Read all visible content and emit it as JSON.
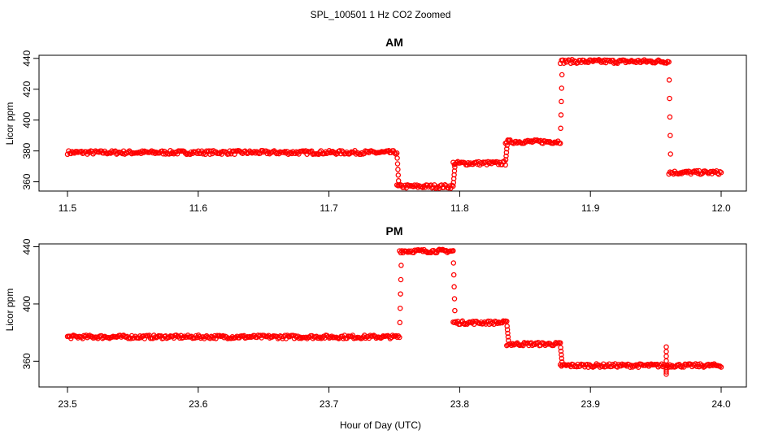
{
  "figure": {
    "title": "SPL_100501  1 Hz CO2 Zoomed",
    "xlabel": "Hour of Day (UTC)"
  },
  "chart_data": [
    {
      "type": "scatter",
      "title": "AM",
      "xlabel": "",
      "ylabel": "Licor ppm",
      "xlim": [
        11.5,
        12.0
      ],
      "ylim": [
        354,
        442
      ],
      "x_ticks": [
        11.5,
        11.6,
        11.7,
        11.8,
        11.9,
        12.0
      ],
      "x_tick_labels": [
        "11.5",
        "11.6",
        "11.7",
        "11.8",
        "11.9",
        "12.0"
      ],
      "y_ticks": [
        360,
        380,
        400,
        420,
        440
      ],
      "y_tick_labels": [
        "360",
        "380",
        "400",
        "420",
        "440"
      ],
      "marker_color": "#ff0000",
      "segments": [
        {
          "x_start": 11.5,
          "x_end": 11.752,
          "y": 379
        },
        {
          "x_start": 11.752,
          "x_end": 11.795,
          "y": 357
        },
        {
          "x_start": 11.795,
          "x_end": 11.835,
          "y": 372
        },
        {
          "x_start": 11.835,
          "x_end": 11.877,
          "y": 386
        },
        {
          "x_start": 11.877,
          "x_end": 11.96,
          "y": 438
        },
        {
          "x_start": 11.96,
          "x_end": 12.0,
          "y": 366
        }
      ],
      "transitions": [
        {
          "x": 11.752,
          "from": 379,
          "to": 357
        },
        {
          "x": 11.795,
          "from": 357,
          "to": 372
        },
        {
          "x": 11.835,
          "from": 372,
          "to": 386
        },
        {
          "x": 11.877,
          "from": 386,
          "to": 438
        },
        {
          "x": 11.96,
          "from": 438,
          "to": 366
        }
      ]
    },
    {
      "type": "scatter",
      "title": "PM",
      "xlabel": "",
      "ylabel": "Licor ppm",
      "xlim": [
        23.5,
        24.0
      ],
      "ylim": [
        342,
        442
      ],
      "x_ticks": [
        23.5,
        23.6,
        23.7,
        23.8,
        23.9,
        24.0
      ],
      "x_tick_labels": [
        "23.5",
        "23.6",
        "23.7",
        "23.8",
        "23.9",
        "24.0"
      ],
      "y_ticks": [
        360,
        400,
        440
      ],
      "y_tick_labels": [
        "360",
        "400",
        "440"
      ],
      "marker_color": "#ff0000",
      "segments": [
        {
          "x_start": 23.5,
          "x_end": 23.754,
          "y": 377
        },
        {
          "x_start": 23.754,
          "x_end": 23.795,
          "y": 437
        },
        {
          "x_start": 23.795,
          "x_end": 23.836,
          "y": 387
        },
        {
          "x_start": 23.836,
          "x_end": 23.877,
          "y": 372
        },
        {
          "x_start": 23.877,
          "x_end": 24.0,
          "y": 357
        }
      ],
      "transitions": [
        {
          "x": 23.754,
          "from": 377,
          "to": 437
        },
        {
          "x": 23.795,
          "from": 437,
          "to": 387
        },
        {
          "x": 23.836,
          "from": 387,
          "to": 372
        },
        {
          "x": 23.877,
          "from": 372,
          "to": 357
        }
      ],
      "spikes": [
        {
          "x": 23.958,
          "from": 357,
          "to": 351
        },
        {
          "x": 23.958,
          "from": 357,
          "to": 370
        }
      ]
    }
  ]
}
